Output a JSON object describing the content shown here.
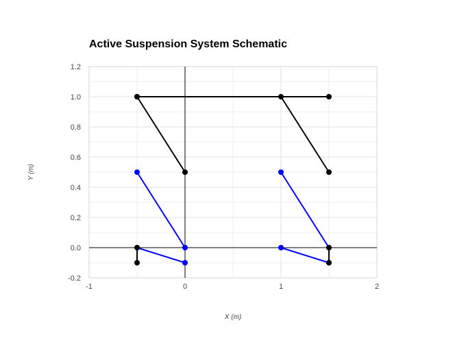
{
  "chart_data": {
    "type": "line",
    "title": "Active Suspension System Schematic",
    "xlabel": "X (m)",
    "ylabel": "Y (m)",
    "xlim": [
      -1,
      2
    ],
    "ylim": [
      -0.2,
      1.2
    ],
    "xticks": [
      "-1",
      "0",
      "1",
      "2"
    ],
    "yticks": [
      "-0.2",
      "0.0",
      "0.2",
      "0.4",
      "0.6",
      "0.8",
      "1.0",
      "1.2"
    ],
    "grid": true,
    "legend": "none",
    "colors": {
      "structure": "#000000",
      "links": "#0000ff",
      "grid": "#e0e0e0",
      "zero_line": "#000000"
    },
    "series": [
      {
        "color": "#000000",
        "x": [
          -0.5,
          1.5
        ],
        "y": [
          1.0,
          1.0
        ]
      },
      {
        "color": "#000000",
        "x": [
          -0.5,
          0
        ],
        "y": [
          1.0,
          0.5
        ]
      },
      {
        "color": "#000000",
        "x": [
          1,
          1.5
        ],
        "y": [
          1.0,
          0.5
        ]
      },
      {
        "color": "#0000ff",
        "x": [
          -0.5,
          0
        ],
        "y": [
          0.5,
          0
        ]
      },
      {
        "color": "#0000ff",
        "x": [
          1,
          1.5
        ],
        "y": [
          0.5,
          0
        ]
      },
      {
        "color": "#0000ff",
        "x": [
          -0.5,
          0
        ],
        "y": [
          0,
          -0.1
        ]
      },
      {
        "color": "#0000ff",
        "x": [
          1,
          1.5
        ],
        "y": [
          0,
          -0.1
        ]
      },
      {
        "color": "#000000",
        "x": [
          -0.5,
          -0.5
        ],
        "y": [
          0,
          -0.1
        ]
      },
      {
        "color": "#000000",
        "x": [
          1.5,
          1.5
        ],
        "y": [
          0,
          -0.1
        ]
      }
    ]
  }
}
